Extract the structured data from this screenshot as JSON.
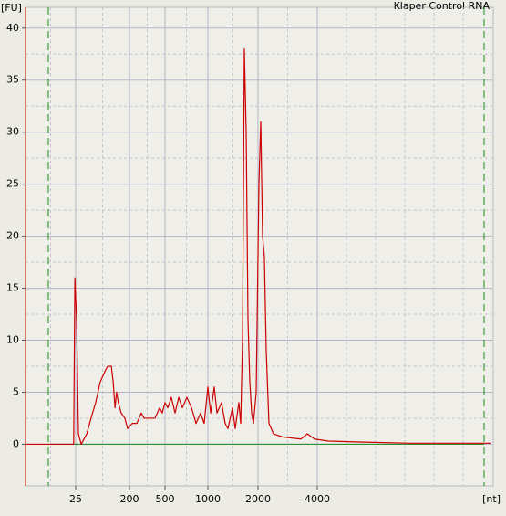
{
  "chart_data": {
    "type": "line",
    "title": "Klaper Control RNA",
    "ylabel": "[FU]",
    "xlabel": "[nt]",
    "xlim": [
      0,
      10000
    ],
    "xticks": [
      25,
      200,
      500,
      1000,
      2000,
      4000
    ],
    "ylim": [
      -4,
      42
    ],
    "yticks": [
      0,
      5,
      10,
      15,
      20,
      25,
      30,
      35,
      40
    ],
    "grid": true,
    "x": [
      0,
      10,
      24,
      24.6,
      28,
      34,
      43,
      61,
      75,
      90,
      105,
      120,
      129,
      141,
      147,
      153,
      158,
      164,
      173,
      185,
      194,
      223,
      262,
      300,
      323,
      362,
      415,
      454,
      477,
      500,
      532,
      574,
      617,
      660,
      702,
      755,
      809,
      862,
      915,
      957,
      1000,
      1055,
      1127,
      1182,
      1273,
      1345,
      1400,
      1491,
      1545,
      1618,
      1655,
      1691,
      1727,
      1764,
      1800,
      1836,
      1873,
      1909,
      1964,
      2031,
      2092,
      2154,
      2215,
      2277,
      2369,
      2523,
      2831,
      3138,
      3446,
      3662,
      3908,
      4375,
      5625,
      7188,
      8750,
      9938
    ],
    "series": [
      {
        "color": "#cc0000",
        "values": [
          0,
          0,
          0,
          16,
          12,
          1,
          0,
          1,
          2.5,
          4,
          6,
          7,
          7.5,
          7.5,
          6,
          3.5,
          5,
          4,
          3,
          2.5,
          1.5,
          2,
          2,
          3,
          2.5,
          2.5,
          2.5,
          3.5,
          3,
          4,
          3.5,
          4.5,
          3,
          4.5,
          3.5,
          4.5,
          3.5,
          2,
          3,
          2,
          5.5,
          3,
          5.5,
          3,
          4,
          2,
          1.5,
          3.5,
          1.5,
          4,
          2,
          10,
          38,
          30,
          12,
          6,
          3,
          2,
          5,
          25,
          31,
          20,
          18,
          9,
          2,
          1,
          0.7,
          0.6,
          0.5,
          1,
          0.5,
          0.3,
          0.2,
          0.1,
          0.1,
          0.1
        ]
      }
    ]
  }
}
